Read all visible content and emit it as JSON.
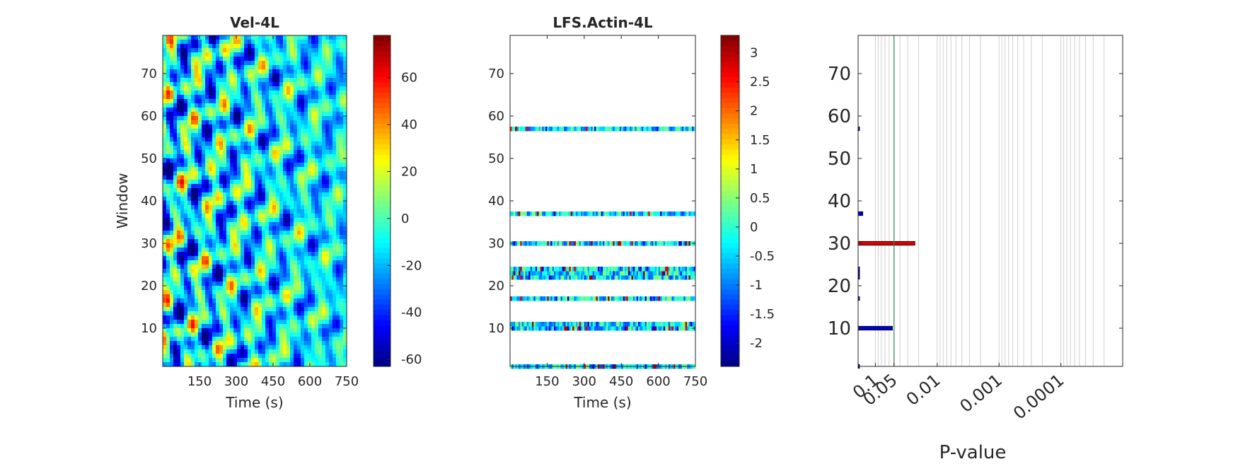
{
  "chart_data": [
    {
      "type": "heatmap",
      "title": "Vel-4L",
      "xlabel": "Time (s)",
      "ylabel": "Window",
      "xlim": [
        0,
        750
      ],
      "ylim": [
        1,
        79
      ],
      "xticks": [
        150,
        300,
        450,
        600,
        750
      ],
      "yticks": [
        10,
        20,
        30,
        40,
        50,
        60,
        70
      ],
      "colormap": "jet",
      "colorbar": {
        "range": [
          -63,
          78
        ],
        "ticks": [
          -60,
          -40,
          -20,
          0,
          20,
          40,
          60
        ]
      }
    },
    {
      "type": "heatmap",
      "title": "LFS.Actin-4L",
      "xlabel": "Time (s)",
      "ylabel": "",
      "xlim": [
        0,
        750
      ],
      "ylim": [
        1,
        79
      ],
      "xticks": [
        150,
        300,
        450,
        600,
        750
      ],
      "yticks": [
        10,
        20,
        30,
        40,
        50,
        60,
        70
      ],
      "colormap": "jet",
      "rows_with_data": [
        1,
        10,
        11,
        17,
        22,
        23,
        24,
        30,
        37,
        57
      ],
      "colorbar": {
        "range": [
          -2.4,
          3.3
        ],
        "ticks": [
          -2,
          -1.5,
          -1,
          -0.5,
          0,
          0.5,
          1,
          1.5,
          2,
          2.5,
          3
        ]
      }
    },
    {
      "type": "bar",
      "orientation": "horizontal",
      "xlabel": "P-value",
      "ylabel": "",
      "ylim": [
        1,
        79
      ],
      "yticks": [
        10,
        20,
        30,
        40,
        50,
        60,
        70
      ],
      "xscale": "-log10",
      "xticklabels": [
        "0.1",
        "0.05",
        "0.01",
        "0.001",
        "0.0001"
      ],
      "threshold": 0.05,
      "threshold_color": "#2e8b57",
      "bars": [
        {
          "window": 1,
          "pvalue": 0.88,
          "color": "#0000cc"
        },
        {
          "window": 10,
          "pvalue": 0.053,
          "color": "#0000cc"
        },
        {
          "window": 17,
          "pvalue": 0.42,
          "color": "#0000cc"
        },
        {
          "window": 22,
          "pvalue": 0.68,
          "color": "#0000cc"
        },
        {
          "window": 23,
          "pvalue": 0.32,
          "color": "#0000cc"
        },
        {
          "window": 24,
          "pvalue": 0.55,
          "color": "#0000cc"
        },
        {
          "window": 30,
          "pvalue": 0.023,
          "color": "#dd0000"
        },
        {
          "window": 37,
          "pvalue": 0.16,
          "color": "#0000cc"
        },
        {
          "window": 57,
          "pvalue": 0.24,
          "color": "#0000cc"
        }
      ],
      "colors": {
        "significant": "#dd0000",
        "not_significant": "#0000cc"
      }
    }
  ]
}
